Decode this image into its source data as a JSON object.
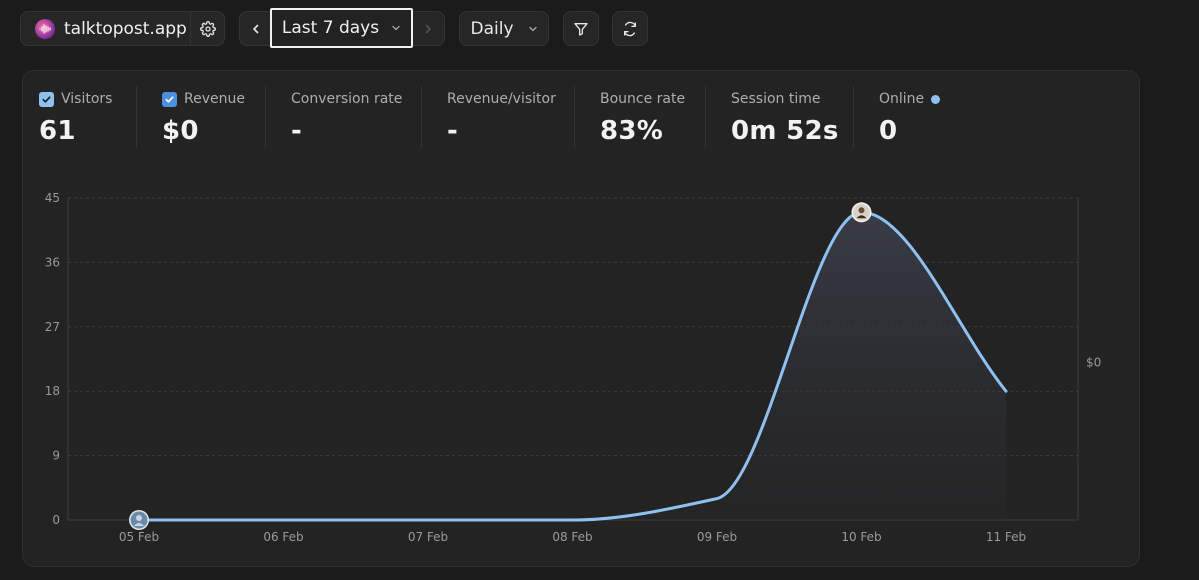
{
  "site": {
    "name": "talktopost.app"
  },
  "range": {
    "label": "Last 7 days"
  },
  "interval": {
    "label": "Daily"
  },
  "metrics": {
    "visitors": {
      "label": "Visitors",
      "value": "61",
      "checked": true
    },
    "revenue": {
      "label": "Revenue",
      "value": "$0",
      "checked": true
    },
    "conversion": {
      "label": "Conversion rate",
      "value": "-"
    },
    "revenue_per_visitor": {
      "label": "Revenue/visitor",
      "value": "-"
    },
    "bounce": {
      "label": "Bounce rate",
      "value": "83%"
    },
    "session": {
      "label": "Session time",
      "value": "0m 52s"
    },
    "online": {
      "label": "Online",
      "value": "0"
    }
  },
  "colors": {
    "line": "#8fc1f0",
    "background": "#1b1b1b",
    "card": "#232323"
  },
  "chart_data": {
    "type": "area",
    "categories": [
      "05 Feb",
      "06 Feb",
      "07 Feb",
      "08 Feb",
      "09 Feb",
      "10 Feb",
      "11 Feb"
    ],
    "series": [
      {
        "name": "Visitors",
        "values": [
          0,
          0,
          0,
          0,
          3,
          43,
          18
        ]
      }
    ],
    "y_ticks": [
      "0",
      "9",
      "18",
      "27",
      "36",
      "45"
    ],
    "ylim": [
      0,
      45
    ],
    "right_axis_label": "$0",
    "grid": true
  }
}
